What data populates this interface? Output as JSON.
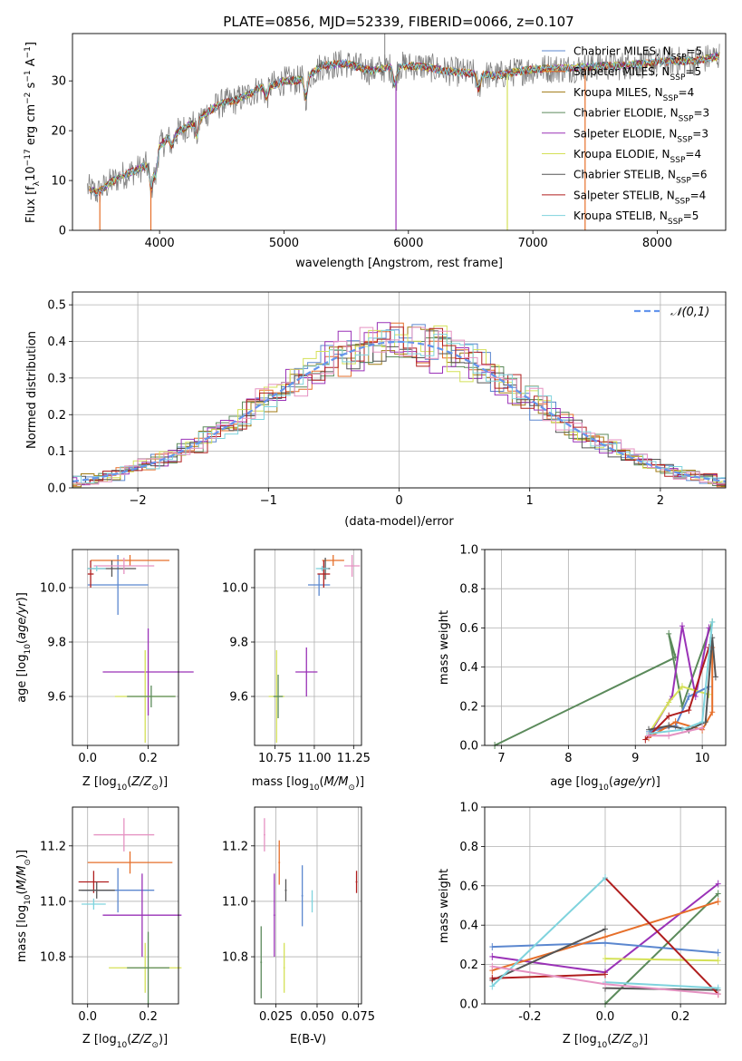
{
  "figure_title": "PLATE=0856, MJD=52339, FIBERID=0066, z=0.107",
  "colors": {
    "chabrier_miles": "#5b87cf",
    "salpeter_miles": "#e66f2a",
    "kroupa_miles": "#a07a12",
    "chabrier_elodie": "#5b8a5b",
    "salpeter_elodie": "#9a32b7",
    "kroupa_elodie": "#d4e157",
    "chabrier_stelib": "#555555",
    "salpeter_stelib": "#b01e1e",
    "kroupa_stelib": "#7fd3dd",
    "pink": "#e592c2",
    "normal": "#6495ed"
  },
  "chart_data": [
    {
      "panel": "spectrum",
      "type": "line",
      "title": "PLATE=0856, MJD=52339, FIBERID=0066, z=0.107",
      "xlabel": "wavelength [Angstrom, rest frame]",
      "ylabel": "Flux [f_λ10^−17 erg cm^−2 s^−1 A^−1]",
      "xlim": [
        3300,
        8550
      ],
      "ylim": [
        0,
        39.5
      ],
      "xticks": [
        4000,
        5000,
        6000,
        7000,
        8000
      ],
      "yticks": [
        0,
        10,
        20,
        30
      ],
      "legend_position": "top-right",
      "legend": [
        "Chabrier MILES, N_SSP=5",
        "Salpeter MILES, N_SSP=5",
        "Kroupa MILES, N_SSP=4",
        "Chabrier ELODIE, N_SSP=3",
        "Salpeter ELODIE, N_SSP=3",
        "Kroupa ELODIE, N_SSP=4",
        "Chabrier STELIB, N_SSP=6",
        "Salpeter STELIB, N_SSP=4",
        "Kroupa STELIB, N_SSP=5"
      ],
      "continuum": {
        "x": [
          3420,
          3500,
          3600,
          3700,
          3800,
          3900,
          4000,
          4100,
          4200,
          4300,
          4400,
          4500,
          4600,
          4700,
          4800,
          4900,
          5000,
          5100,
          5200,
          5300,
          5500,
          5700,
          5900,
          6100,
          6300,
          6500,
          6700,
          6900,
          7100,
          7300,
          7500,
          7700,
          7900,
          8100,
          8300,
          8500
        ],
        "y": [
          8.5,
          7.5,
          9.5,
          11,
          12,
          13,
          17,
          19,
          20.5,
          22,
          24,
          25.5,
          26,
          27,
          28.5,
          29,
          30,
          30,
          31,
          33,
          33.5,
          32,
          33,
          33,
          32,
          31.5,
          31,
          32,
          32.5,
          32.5,
          33,
          33,
          33.5,
          34,
          34,
          35
        ]
      }
    },
    {
      "panel": "residuals",
      "type": "histogram",
      "xlabel": "(data-model)/error",
      "ylabel": "Normed distribution",
      "xlim": [
        -2.5,
        2.5
      ],
      "ylim": [
        0,
        0.535
      ],
      "xticks": [
        -2,
        -1,
        0,
        1,
        2
      ],
      "yticks": [
        0.0,
        0.1,
        0.2,
        0.3,
        0.4,
        0.5
      ],
      "grid": true,
      "legend_position": "top-right",
      "legend": [
        "𝒩(0,1)"
      ],
      "bin_width": 0.1
    },
    {
      "panel": "age_vs_Z",
      "type": "scatter",
      "xlabel": "Z [log10(Z/Z⊙)]",
      "ylabel": "age  [log10(age/yr)]",
      "xlim": [
        -0.05,
        0.3
      ],
      "ylim": [
        9.42,
        10.14
      ],
      "xticks": [
        0.0,
        0.2
      ],
      "yticks": [
        9.6,
        9.8,
        10.0
      ],
      "grid": true
    },
    {
      "panel": "age_vs_mass",
      "type": "scatter",
      "xlabel": "mass [log10(M/M⊙)]",
      "ylabel": "",
      "xlim": [
        10.62,
        11.3
      ],
      "ylim": [
        9.42,
        10.14
      ],
      "xticks": [
        10.75,
        11.0,
        11.25
      ],
      "yticks": [
        9.6,
        9.8,
        10.0
      ],
      "grid": true
    },
    {
      "panel": "weight_vs_age",
      "type": "line",
      "xlabel": "age  [log10(age/yr)]",
      "ylabel": "mass weight",
      "xlim": [
        6.75,
        10.35
      ],
      "ylim": [
        0,
        1.0
      ],
      "xticks": [
        7,
        8,
        9,
        10
      ],
      "yticks": [
        0.0,
        0.2,
        0.4,
        0.6,
        0.8,
        1.0
      ],
      "grid": true
    },
    {
      "panel": "mass_vs_Z",
      "type": "scatter",
      "xlabel": "Z [log10(Z/Z⊙)]",
      "ylabel": "mass [log10(M/M⊙)]",
      "xlim": [
        -0.05,
        0.3
      ],
      "ylim": [
        10.63,
        11.34
      ],
      "xticks": [
        0.0,
        0.2
      ],
      "yticks": [
        10.8,
        11.0,
        11.2
      ],
      "grid": true
    },
    {
      "panel": "mass_vs_EBV",
      "type": "scatter",
      "xlabel": "E(B-V)",
      "ylabel": "",
      "xlim": [
        0.012,
        0.077
      ],
      "ylim": [
        10.63,
        11.34
      ],
      "xticks": [
        0.025,
        0.05,
        0.075
      ],
      "yticks": [
        10.8,
        11.0,
        11.2
      ],
      "grid": true
    },
    {
      "panel": "weight_vs_Z",
      "type": "line",
      "xlabel": "Z [log10(Z/Z⊙)]",
      "ylabel": "mass weight",
      "xlim": [
        -0.32,
        0.32
      ],
      "ylim": [
        0,
        1.0
      ],
      "xticks": [
        -0.2,
        0.0,
        0.2
      ],
      "yticks": [
        0.0,
        0.2,
        0.4,
        0.6,
        0.8,
        1.0
      ],
      "grid": true
    }
  ]
}
